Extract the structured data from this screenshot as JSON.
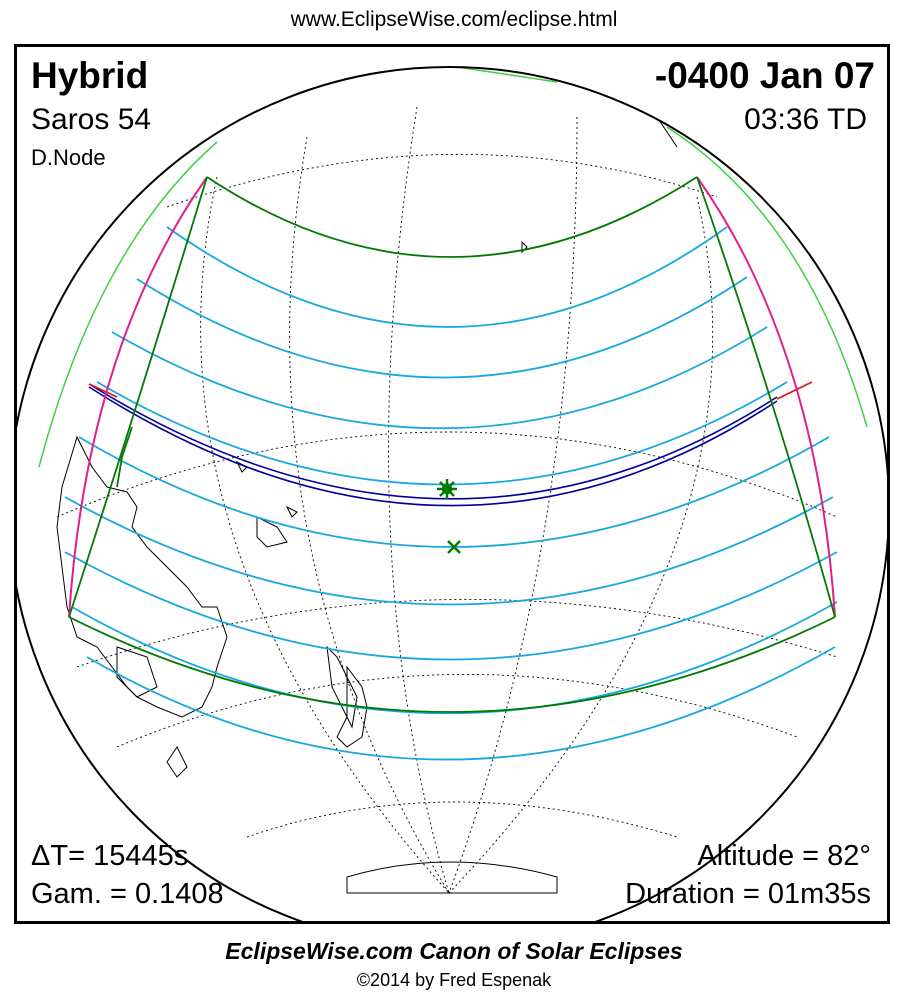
{
  "header": {
    "url": "www.EclipseWise.com/eclipse.html"
  },
  "eclipse": {
    "type": "Hybrid",
    "date": "-0400 Jan 07",
    "saros_label": "Saros  54",
    "time_label": "03:36 TD",
    "node_label": "D.Node",
    "delta_t_label": "ΔT=  15445s",
    "gamma_label": "Gam. = 0.1408",
    "altitude_label": "Altitude = 82°",
    "duration_label": "Duration = 01m35s"
  },
  "footer": {
    "canon_title": "EclipseWise.com Canon of Solar Eclipses",
    "copyright": "©2014 by Fred Espenak"
  },
  "map": {
    "colors": {
      "central_path": "#00009a",
      "penumbral_limits": "#007a00",
      "rise_set": "#e0208a",
      "magnitude_lines": "#18a8e0",
      "max_eclipse_ends": "#e01010",
      "coastlines": "#000000",
      "graticule": "#000000"
    },
    "symbols": [
      "greatest-eclipse-star-icon",
      "sub-solar-point-x-icon"
    ]
  }
}
